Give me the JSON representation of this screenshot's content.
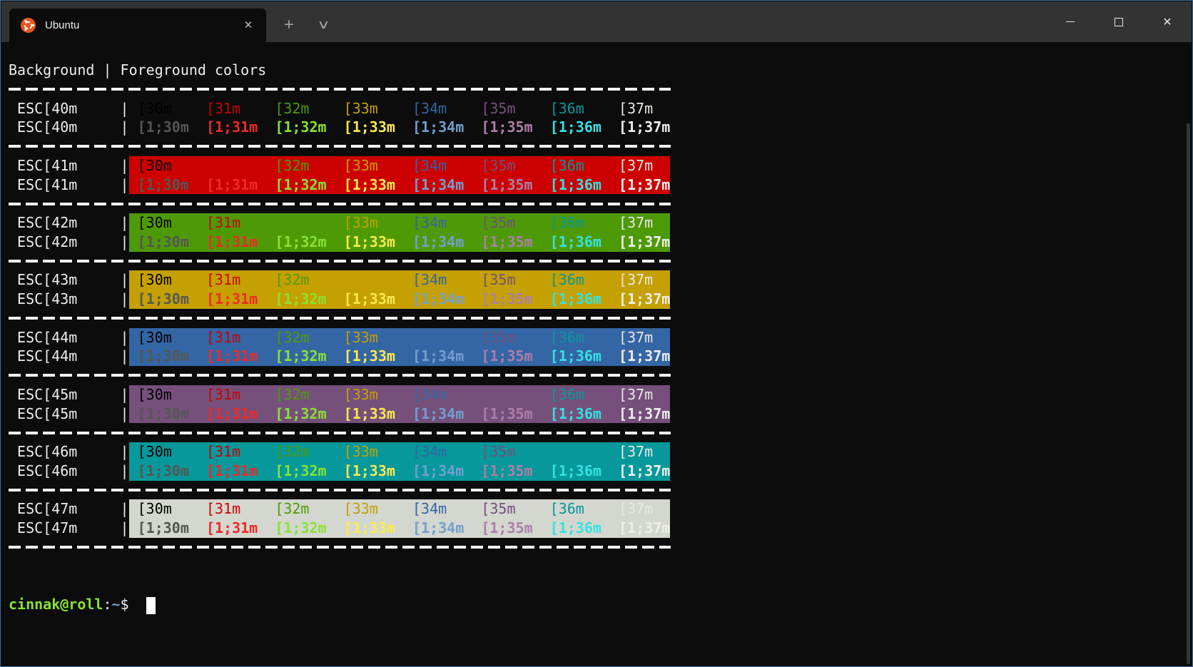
{
  "tab_bar": {
    "active_tab": {
      "title": "Ubuntu",
      "close_glyph": "✕"
    },
    "new_tab_glyph": "+",
    "tab_dropdown_glyph": "∨"
  },
  "window_controls": {
    "minimize": "minimize",
    "maximize": "maximize",
    "close_glyph": "✕"
  },
  "terminal": {
    "header": "Background | Foreground colors",
    "column_codes": [
      "[30m",
      "[31m",
      "[32m",
      "[33m",
      "[34m",
      "[35m",
      "[36m",
      "[37m"
    ],
    "column_codes_bold": [
      "[1;30m",
      "[1;31m",
      "[1;32m",
      "[1;33m",
      "[1;34m",
      "[1;35m",
      "[1;36m",
      "[1;37m"
    ],
    "rows": [
      {
        "label": "ESC[40m",
        "bg": "40"
      },
      {
        "label": "ESC[41m",
        "bg": "41"
      },
      {
        "label": "ESC[42m",
        "bg": "42"
      },
      {
        "label": "ESC[43m",
        "bg": "43"
      },
      {
        "label": "ESC[44m",
        "bg": "44"
      },
      {
        "label": "ESC[45m",
        "bg": "45"
      },
      {
        "label": "ESC[46m",
        "bg": "46"
      },
      {
        "label": "ESC[47m",
        "bg": "47"
      }
    ],
    "prompt": {
      "user_host": "cinnak@roll",
      "colon": ":",
      "path": "~",
      "dollar": "$"
    },
    "palette": {
      "terminal_background": "#0C0C0C",
      "default_foreground": "#EDEDEA",
      "accent_border": "#3B6EA5",
      "tab_bar_background": "#333333",
      "ubuntu_orange": "#E95420",
      "fg": {
        "30": "#000000",
        "31": "#CC0000",
        "32": "#4E9A06",
        "33": "#C4A000",
        "34": "#3465A4",
        "35": "#75507B",
        "36": "#06989A",
        "37": "#E8E8E3"
      },
      "fg_bold": {
        "30": "#555753",
        "31": "#EF2929",
        "32": "#8AE234",
        "33": "#FCE94F",
        "34": "#729FCF",
        "35": "#AD7FA8",
        "36": "#34E2E2",
        "37": "#EEEEEC"
      },
      "bg": {
        "40": "#0C0C0C",
        "41": "#CC0000",
        "42": "#4E9A06",
        "43": "#C4A000",
        "44": "#3465A4",
        "45": "#75507B",
        "46": "#06989A",
        "47": "#D3D7CF"
      }
    }
  }
}
